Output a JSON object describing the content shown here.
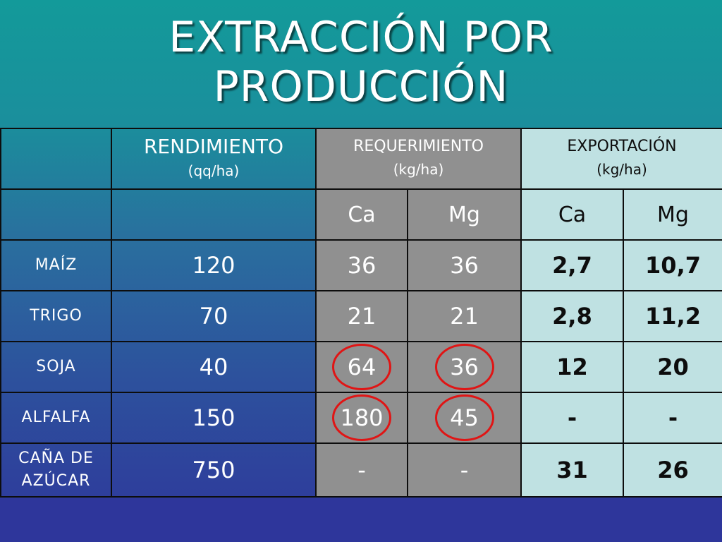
{
  "title": {
    "line1": "EXTRACCIÓN POR",
    "line2": "PRODUCCIÓN"
  },
  "headers": {
    "rendimiento": "RENDIMIENTO",
    "rendimiento_unit": "(qq/ha)",
    "requerimiento": "REQUERIMIENTO",
    "requerimiento_unit": "(kg/ha)",
    "exportacion": "EXPORTACIÓN",
    "exportacion_unit": "(kg/ha)",
    "sub": [
      "Ca",
      "Mg",
      "Ca",
      "Mg"
    ]
  },
  "rows": [
    {
      "crop": "MAÍZ",
      "crop_line2": "",
      "rend": "120",
      "req_ca": "36",
      "req_mg": "36",
      "exp_ca": "2,7",
      "exp_mg": "10,7"
    },
    {
      "crop": "TRIGO",
      "crop_line2": "",
      "rend": "70",
      "req_ca": "21",
      "req_mg": "21",
      "exp_ca": "2,8",
      "exp_mg": "11,2"
    },
    {
      "crop": "SOJA",
      "crop_line2": "",
      "rend": "40",
      "req_ca": "64",
      "req_mg": "36",
      "exp_ca": "12",
      "exp_mg": "20"
    },
    {
      "crop": "ALFALFA",
      "crop_line2": "",
      "rend": "150",
      "req_ca": "180",
      "req_mg": "45",
      "exp_ca": "-",
      "exp_mg": "-"
    },
    {
      "crop": "CAÑA DE",
      "crop_line2": "AZÚCAR",
      "rend": "750",
      "req_ca": "-",
      "req_mg": "-",
      "exp_ca": "31",
      "exp_mg": "26"
    }
  ],
  "highlight_color": "#e01515",
  "colors": {
    "requerimiento_bg": "#909090",
    "exportacion_bg": "#bfe1e2",
    "background_top": "#139a9a",
    "background_bottom": "#2e379b"
  }
}
